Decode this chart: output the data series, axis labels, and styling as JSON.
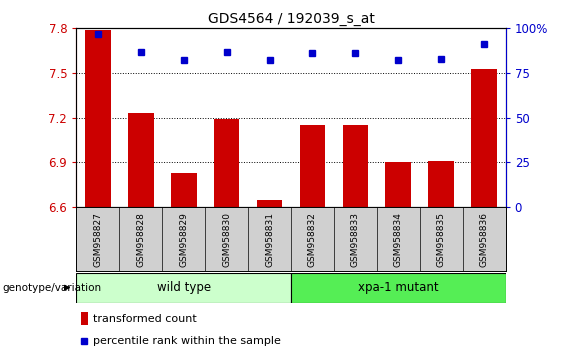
{
  "title": "GDS4564 / 192039_s_at",
  "samples": [
    "GSM958827",
    "GSM958828",
    "GSM958829",
    "GSM958830",
    "GSM958831",
    "GSM958832",
    "GSM958833",
    "GSM958834",
    "GSM958835",
    "GSM958836"
  ],
  "bar_values": [
    7.79,
    7.23,
    6.83,
    7.19,
    6.65,
    7.15,
    7.15,
    6.9,
    6.91,
    7.53
  ],
  "percentile_values": [
    97,
    87,
    82,
    87,
    82,
    86,
    86,
    82,
    83,
    91
  ],
  "ylim_left": [
    6.6,
    7.8
  ],
  "ylim_right": [
    0,
    100
  ],
  "yticks_left": [
    6.6,
    6.9,
    7.2,
    7.5,
    7.8
  ],
  "yticks_right": [
    0,
    25,
    50,
    75,
    100
  ],
  "bar_color": "#cc0000",
  "dot_color": "#0000cc",
  "wild_type_samples": 5,
  "wild_type_label": "wild type",
  "mutant_label": "xpa-1 mutant",
  "wild_type_color": "#ccffcc",
  "mutant_color": "#55ee55",
  "group_label": "genotype/variation",
  "legend_bar_label": "transformed count",
  "legend_dot_label": "percentile rank within the sample",
  "tick_color_left": "#cc0000",
  "tick_color_right": "#0000cc",
  "plot_bg_color": "#ffffff",
  "label_area_color": "#d0d0d0"
}
